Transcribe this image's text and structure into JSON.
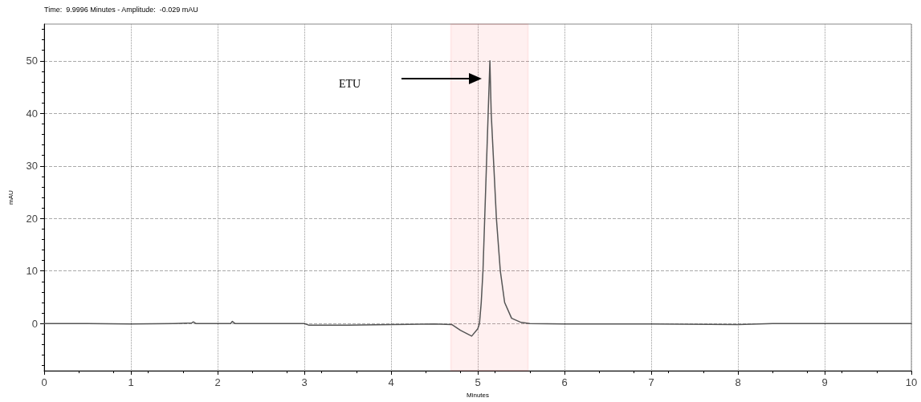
{
  "chart_data": {
    "type": "line",
    "subtitle": "Time:  9.9996 Minutes - Amplitude:  -0.029 mAU",
    "xlabel": "Minutes",
    "ylabel": "mAU",
    "xlim": [
      0,
      10
    ],
    "xticks": [
      0,
      1,
      2,
      3,
      4,
      5,
      6,
      7,
      8,
      9,
      10
    ],
    "ylim": [
      -9,
      57
    ],
    "yticks": [
      0,
      10,
      20,
      30,
      40,
      50
    ],
    "grid": true,
    "marker": "none",
    "line_style": "solid",
    "series": [
      {
        "color": "#555555",
        "x": [
          0,
          0.3,
          0.5,
          1,
          1.5,
          1.7,
          1.72,
          1.75,
          2,
          2.15,
          2.17,
          2.2,
          2.5,
          3,
          3.05,
          3.5,
          4,
          4.5,
          4.7,
          4.8,
          4.93,
          5.0,
          5.02,
          5.04,
          5.06,
          5.08,
          5.1,
          5.12,
          5.14,
          5.155,
          5.185,
          5.215,
          5.26,
          5.31,
          5.39,
          5.5,
          5.6,
          6,
          7,
          8,
          8.4,
          9,
          10
        ],
        "values": [
          0,
          0,
          0,
          -0.1,
          0,
          0.1,
          0.3,
          0,
          0,
          0,
          0.4,
          0,
          0,
          0,
          -0.3,
          -0.3,
          -0.2,
          -0.1,
          -0.2,
          -1.3,
          -2.4,
          -1,
          0,
          4,
          10,
          20,
          30,
          40,
          50,
          40,
          30,
          20,
          10,
          4,
          1,
          0.2,
          0,
          -0.1,
          -0.1,
          -0.2,
          0,
          0,
          0
        ]
      }
    ],
    "bands": [
      {
        "axis": "x",
        "from": 4.69,
        "to": 5.58,
        "color": "#ff0000"
      }
    ],
    "annotations": [
      "ETU"
    ]
  }
}
